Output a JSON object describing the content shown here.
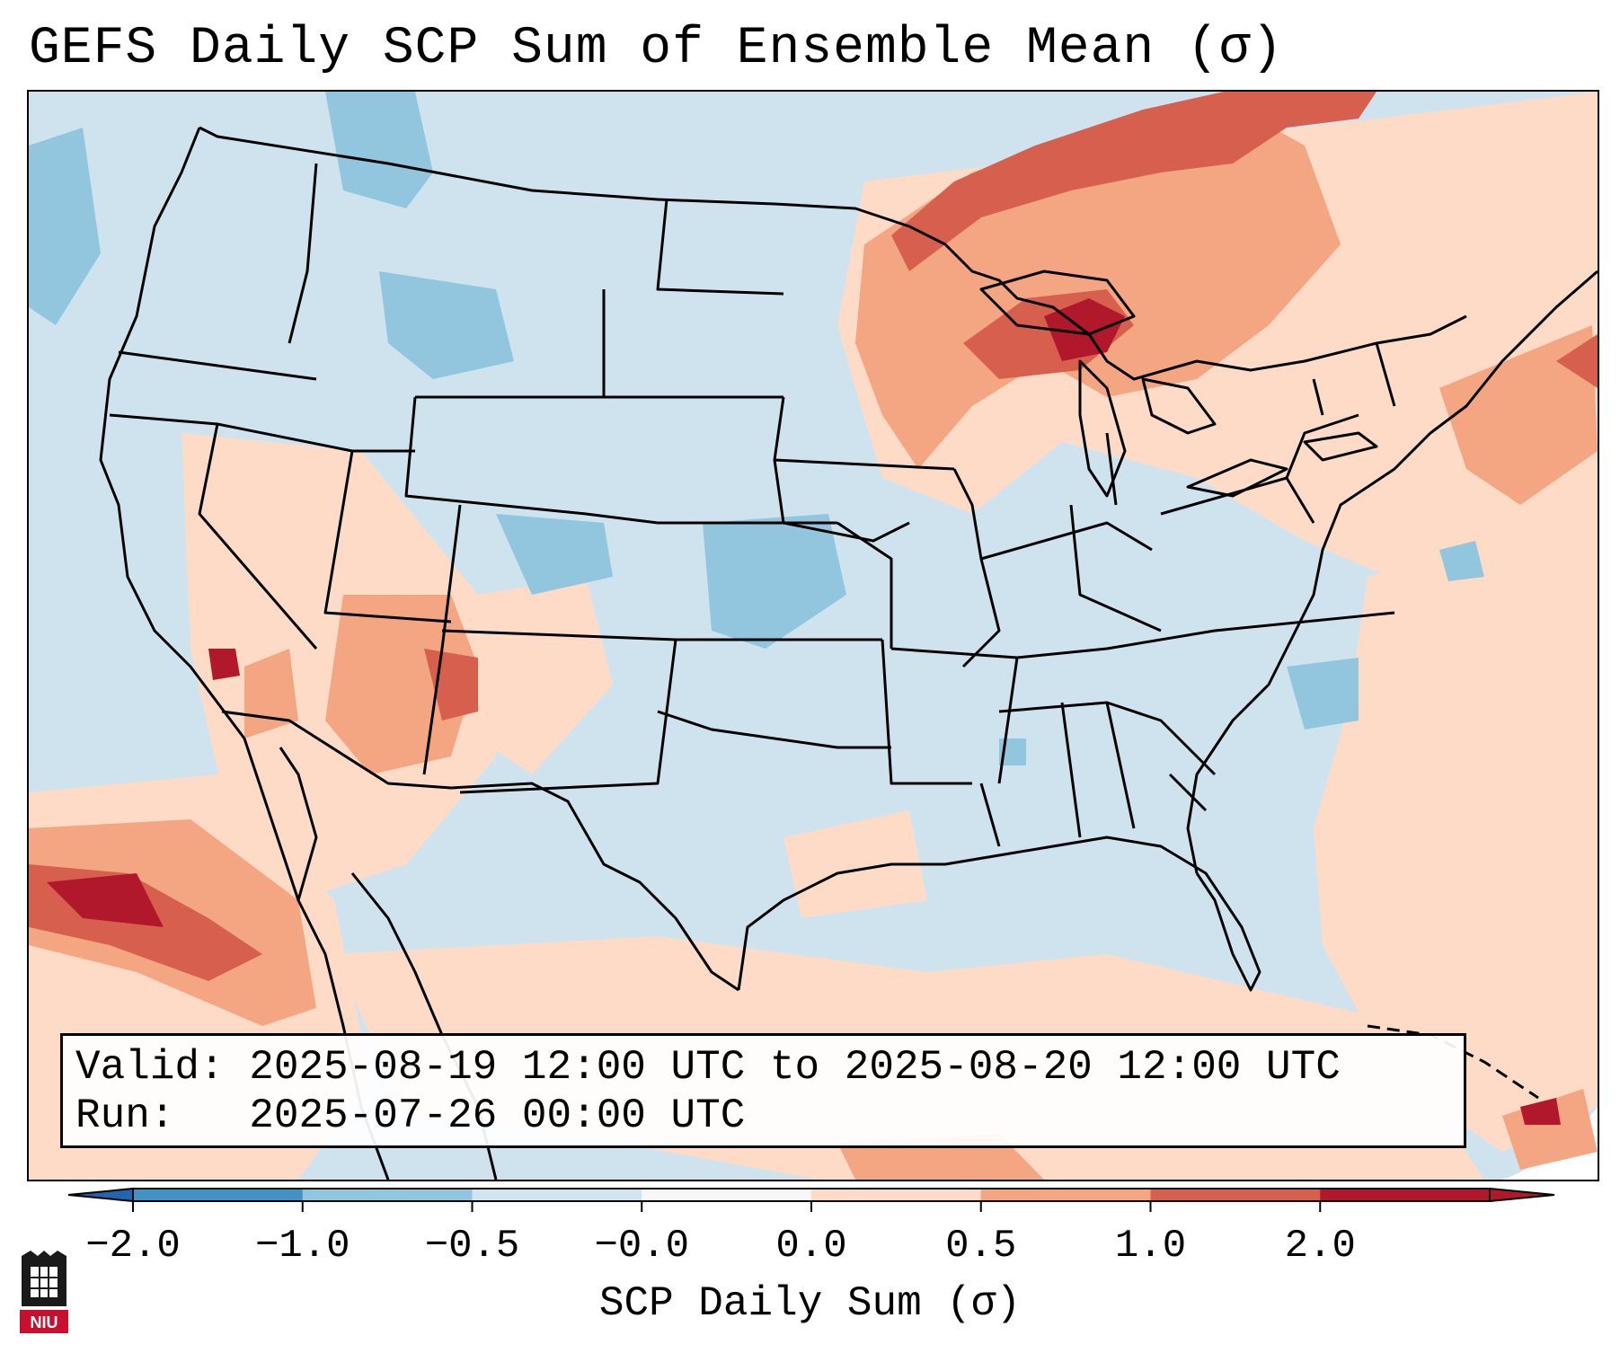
{
  "title": "GEFS Daily SCP Sum of Ensemble Mean (σ)",
  "info": {
    "valid_line": "Valid: 2025-08-19 12:00 UTC to 2025-08-20 12:00 UTC",
    "run_line": "Run:   2025-07-26 00:00 UTC"
  },
  "colorbar": {
    "label": "SCP Daily Sum (σ)",
    "ticks": [
      "−2.0",
      "−1.0",
      "−0.5",
      "−0.0",
      "0.0",
      "0.5",
      "1.0",
      "2.0"
    ],
    "colors": [
      "#4292c6",
      "#92c5de",
      "#d1e5f0",
      "#f7f7f7",
      "#fddbc7",
      "#f4a582",
      "#d6604d",
      "#b2182b"
    ],
    "extend_low_color": "#2166ac",
    "extend_high_color": "#b2182b"
  },
  "logo_text": "NIU"
}
